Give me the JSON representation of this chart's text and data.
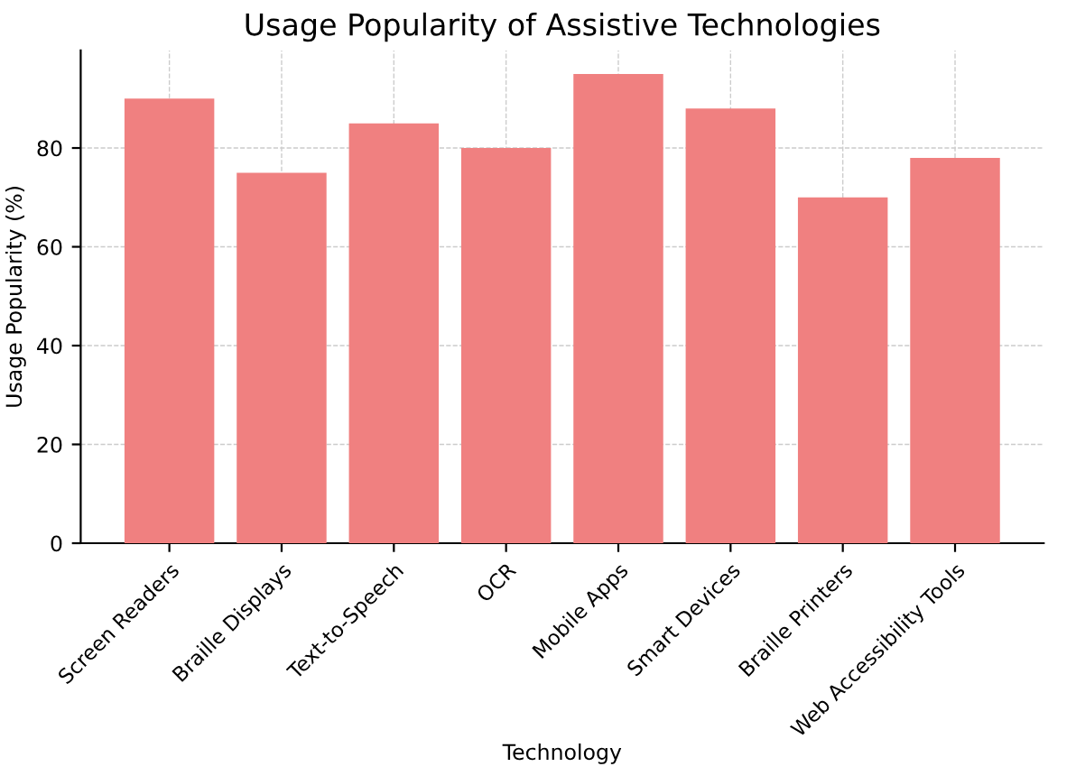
{
  "chart_data": {
    "type": "bar",
    "title": "Usage Popularity of Assistive Technologies",
    "xlabel": "Technology",
    "ylabel": "Usage Popularity (%)",
    "categories": [
      "Screen Readers",
      "Braille Displays",
      "Text-to-Speech",
      "OCR",
      "Mobile Apps",
      "Smart Devices",
      "Braille Printers",
      "Web Accessibility Tools"
    ],
    "values": [
      90,
      75,
      85,
      80,
      95,
      88,
      70,
      78
    ],
    "color": "#f08080",
    "ylim": [
      0,
      99.75
    ],
    "yticks": [
      0,
      20,
      40,
      60,
      80
    ],
    "grid": true
  }
}
